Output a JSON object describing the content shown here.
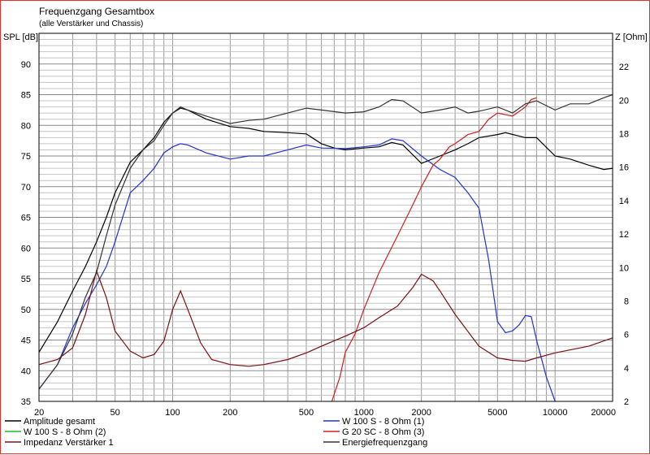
{
  "chart_data": {
    "type": "line",
    "title": "Frequenzgang Gesamtbox",
    "subtitle": "(alle Verstärker und Chassis)",
    "ylabel": "SPL [dB]",
    "y2label": "Z [Ohm]",
    "xscale": "log",
    "xlim": [
      20,
      20000
    ],
    "ylim": [
      35,
      95
    ],
    "y2lim": [
      2,
      24
    ],
    "x_ticks": [
      20,
      50,
      100,
      200,
      500,
      1000,
      2000,
      5000,
      10000,
      20000
    ],
    "y_ticks": [
      35,
      40,
      45,
      50,
      55,
      60,
      65,
      70,
      75,
      80,
      85,
      90
    ],
    "y2_ticks": [
      2,
      4,
      6,
      8,
      10,
      12,
      14,
      16,
      18,
      20,
      22
    ],
    "grid": true,
    "legend_position": "bottom",
    "series": [
      {
        "name": "Amplitude gesamt",
        "color": "#000000",
        "points": [
          [
            20,
            43
          ],
          [
            25,
            48
          ],
          [
            30,
            53
          ],
          [
            35,
            57
          ],
          [
            40,
            61
          ],
          [
            45,
            65
          ],
          [
            50,
            69
          ],
          [
            60,
            74
          ],
          [
            70,
            76
          ],
          [
            80,
            78
          ],
          [
            90,
            80.5
          ],
          [
            100,
            82
          ],
          [
            110,
            82.8
          ],
          [
            120,
            82.5
          ],
          [
            150,
            81
          ],
          [
            200,
            79.8
          ],
          [
            250,
            79.5
          ],
          [
            300,
            79
          ],
          [
            400,
            78.8
          ],
          [
            500,
            78.6
          ],
          [
            600,
            77
          ],
          [
            700,
            76.3
          ],
          [
            800,
            76
          ],
          [
            1000,
            76.3
          ],
          [
            1200,
            76.5
          ],
          [
            1400,
            77.2
          ],
          [
            1600,
            76.8
          ],
          [
            2000,
            73.8
          ],
          [
            2500,
            75
          ],
          [
            3000,
            76
          ],
          [
            3500,
            77
          ],
          [
            4000,
            78
          ],
          [
            5000,
            78.5
          ],
          [
            5500,
            78.8
          ],
          [
            7000,
            78
          ],
          [
            8000,
            78
          ],
          [
            10000,
            75
          ],
          [
            12000,
            74.5
          ],
          [
            15000,
            73.5
          ],
          [
            18000,
            72.8
          ],
          [
            20000,
            73
          ]
        ]
      },
      {
        "name": "W 100 S - 8 Ohm (1)",
        "color": "#2233cc",
        "points": [
          [
            20,
            37
          ],
          [
            25,
            41
          ],
          [
            30,
            47
          ],
          [
            35,
            51
          ],
          [
            40,
            54
          ],
          [
            45,
            57
          ],
          [
            50,
            61
          ],
          [
            60,
            69
          ],
          [
            70,
            71
          ],
          [
            80,
            73
          ],
          [
            90,
            75.5
          ],
          [
            100,
            76.5
          ],
          [
            110,
            77
          ],
          [
            120,
            76.8
          ],
          [
            150,
            75.5
          ],
          [
            200,
            74.5
          ],
          [
            250,
            75
          ],
          [
            300,
            75
          ],
          [
            400,
            76
          ],
          [
            500,
            76.8
          ],
          [
            600,
            76.3
          ],
          [
            800,
            76.2
          ],
          [
            1000,
            76.5
          ],
          [
            1200,
            76.8
          ],
          [
            1400,
            77.8
          ],
          [
            1600,
            77.5
          ],
          [
            2000,
            75
          ],
          [
            2500,
            72.8
          ],
          [
            3000,
            71.5
          ],
          [
            3500,
            69
          ],
          [
            4000,
            66.5
          ],
          [
            4500,
            58
          ],
          [
            5000,
            48
          ],
          [
            5500,
            46.2
          ],
          [
            6000,
            46.5
          ],
          [
            6500,
            47.5
          ],
          [
            7000,
            49
          ],
          [
            7500,
            48.8
          ],
          [
            8000,
            45
          ],
          [
            9000,
            39
          ],
          [
            10000,
            35
          ]
        ]
      },
      {
        "name": "W 100 S - 8 Ohm (2)",
        "color": "#22bb22",
        "points": []
      },
      {
        "name": "G 20 SC - 8 Ohm (3)",
        "color": "#cc2222",
        "points": [
          [
            680,
            35
          ],
          [
            750,
            39
          ],
          [
            800,
            43
          ],
          [
            900,
            46
          ],
          [
            1000,
            50
          ],
          [
            1200,
            56
          ],
          [
            1500,
            62
          ],
          [
            1800,
            67
          ],
          [
            2000,
            70
          ],
          [
            2300,
            73.5
          ],
          [
            2500,
            74.5
          ],
          [
            2800,
            76.5
          ],
          [
            3000,
            77
          ],
          [
            3500,
            78.5
          ],
          [
            4000,
            79
          ],
          [
            4500,
            81
          ],
          [
            5000,
            82
          ],
          [
            6000,
            81.5
          ],
          [
            7000,
            83
          ],
          [
            7500,
            84.2
          ],
          [
            8000,
            84.5
          ]
        ]
      },
      {
        "name": "Impedanz Verstärker 1",
        "color": "#7a1010",
        "unit_axis": "right",
        "points": [
          [
            20,
            4.2
          ],
          [
            25,
            4.5
          ],
          [
            30,
            5.2
          ],
          [
            35,
            7.2
          ],
          [
            40,
            9.8
          ],
          [
            45,
            8.2
          ],
          [
            50,
            6.2
          ],
          [
            60,
            5
          ],
          [
            70,
            4.6
          ],
          [
            80,
            4.8
          ],
          [
            90,
            5.6
          ],
          [
            100,
            7.5
          ],
          [
            110,
            8.6
          ],
          [
            120,
            7.5
          ],
          [
            140,
            5.5
          ],
          [
            160,
            4.5
          ],
          [
            200,
            4.2
          ],
          [
            250,
            4.1
          ],
          [
            300,
            4.2
          ],
          [
            400,
            4.5
          ],
          [
            500,
            4.9
          ],
          [
            600,
            5.3
          ],
          [
            800,
            5.9
          ],
          [
            1000,
            6.4
          ],
          [
            1200,
            7
          ],
          [
            1500,
            7.7
          ],
          [
            1800,
            8.8
          ],
          [
            2000,
            9.6
          ],
          [
            2300,
            9.2
          ],
          [
            2500,
            8.6
          ],
          [
            3000,
            7.2
          ],
          [
            4000,
            5.3
          ],
          [
            5000,
            4.6
          ],
          [
            6000,
            4.45
          ],
          [
            7000,
            4.4
          ],
          [
            8000,
            4.6
          ],
          [
            10000,
            4.9
          ],
          [
            15000,
            5.3
          ],
          [
            20000,
            5.8
          ]
        ]
      },
      {
        "name": "Energiefrequenzgang",
        "color": "#333333",
        "points": [
          [
            20,
            37
          ],
          [
            25,
            41
          ],
          [
            30,
            46
          ],
          [
            35,
            52
          ],
          [
            40,
            56
          ],
          [
            45,
            62
          ],
          [
            50,
            67
          ],
          [
            60,
            73
          ],
          [
            70,
            76
          ],
          [
            80,
            77.5
          ],
          [
            90,
            80
          ],
          [
            100,
            82
          ],
          [
            110,
            83
          ],
          [
            120,
            82.5
          ],
          [
            150,
            81.5
          ],
          [
            200,
            80.3
          ],
          [
            250,
            80.8
          ],
          [
            300,
            81
          ],
          [
            400,
            82
          ],
          [
            500,
            82.8
          ],
          [
            600,
            82.5
          ],
          [
            800,
            82
          ],
          [
            1000,
            82.2
          ],
          [
            1200,
            83
          ],
          [
            1400,
            84.2
          ],
          [
            1600,
            84
          ],
          [
            2000,
            82
          ],
          [
            2500,
            82.5
          ],
          [
            3000,
            83
          ],
          [
            3500,
            82
          ],
          [
            4000,
            82.3
          ],
          [
            5000,
            83
          ],
          [
            6000,
            82
          ],
          [
            7000,
            83.5
          ],
          [
            8000,
            84
          ],
          [
            10000,
            82.5
          ],
          [
            12000,
            83.5
          ],
          [
            15000,
            83.5
          ],
          [
            18000,
            84.5
          ],
          [
            20000,
            85
          ]
        ]
      }
    ]
  }
}
